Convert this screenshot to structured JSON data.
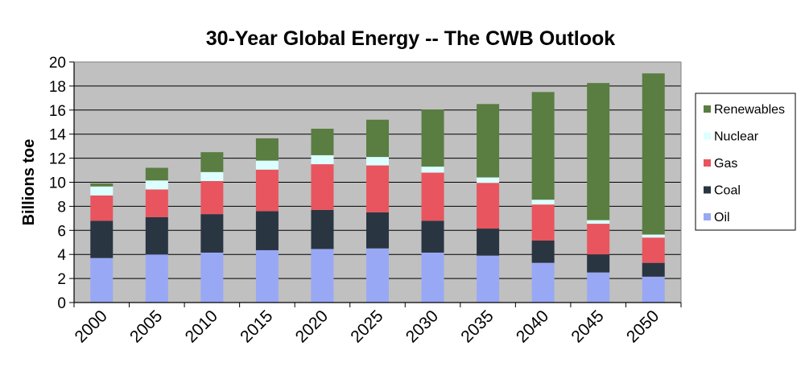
{
  "chart_data": {
    "type": "bar",
    "stacked": true,
    "title": "30-Year Global Energy -- The CWB Outlook",
    "xlabel": "",
    "ylabel": "Billions toe",
    "ylim": [
      0,
      20
    ],
    "yticks": [
      0,
      2,
      4,
      6,
      8,
      10,
      12,
      14,
      16,
      18,
      20
    ],
    "grid": true,
    "legend_position": "right",
    "categories": [
      "2000",
      "2005",
      "2010",
      "2015",
      "2020",
      "2025",
      "2030",
      "2035",
      "2040",
      "2045",
      "2050"
    ],
    "series": [
      {
        "name": "Oil",
        "color": "#99a8f5",
        "values": [
          3.7,
          4.0,
          4.15,
          4.35,
          4.45,
          4.5,
          4.15,
          3.9,
          3.3,
          2.5,
          2.15
        ]
      },
      {
        "name": "Coal",
        "color": "#2a3542",
        "values": [
          3.1,
          3.1,
          3.2,
          3.25,
          3.25,
          3.0,
          2.65,
          2.25,
          1.85,
          1.5,
          1.15
        ]
      },
      {
        "name": "Gas",
        "color": "#e8555e",
        "values": [
          2.1,
          2.3,
          2.75,
          3.45,
          3.8,
          3.9,
          4.0,
          3.8,
          3.0,
          2.55,
          2.1
        ]
      },
      {
        "name": "Nuclear",
        "color": "#dcffff",
        "values": [
          0.75,
          0.75,
          0.75,
          0.75,
          0.75,
          0.7,
          0.5,
          0.45,
          0.4,
          0.3,
          0.25
        ]
      },
      {
        "name": "Renewables",
        "color": "#5a7d42",
        "values": [
          0.25,
          1.05,
          1.65,
          1.85,
          2.2,
          3.1,
          4.75,
          6.1,
          8.95,
          11.4,
          13.4
        ]
      }
    ],
    "legend_order": [
      "Renewables",
      "Nuclear",
      "Gas",
      "Coal",
      "Oil"
    ]
  }
}
